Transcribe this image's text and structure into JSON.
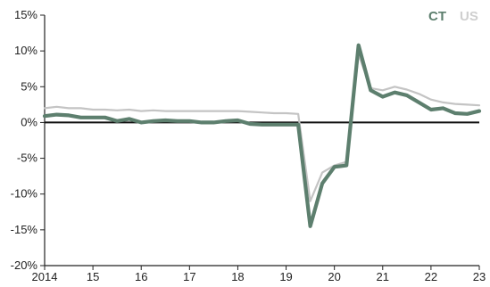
{
  "chart_data": {
    "type": "line",
    "title": "",
    "xlabel": "",
    "ylabel": "",
    "ylim": [
      -20,
      15
    ],
    "xlim": [
      2014,
      2023
    ],
    "grid": false,
    "legend_position": "top-right",
    "y_ticks": [
      15,
      10,
      5,
      0,
      -5,
      -10,
      -15,
      -20
    ],
    "y_tick_labels": [
      "15%",
      "10%",
      "5%",
      "0%",
      "-5%",
      "-10%",
      "-15%",
      "-20%"
    ],
    "x_ticks": [
      2014,
      2015,
      2016,
      2017,
      2018,
      2019,
      2020,
      2021,
      2022,
      2023
    ],
    "x_tick_labels": [
      "2014",
      "15",
      "16",
      "17",
      "18",
      "19",
      "20",
      "21",
      "22",
      "23"
    ],
    "series": [
      {
        "name": "US",
        "color": "#c4c4c4",
        "x": [
          2014.0,
          2014.25,
          2014.5,
          2014.75,
          2015.0,
          2015.25,
          2015.5,
          2015.75,
          2016.0,
          2016.25,
          2016.5,
          2016.75,
          2017.0,
          2017.25,
          2017.5,
          2017.75,
          2018.0,
          2018.25,
          2018.5,
          2018.75,
          2019.0,
          2019.25,
          2019.5,
          2019.75,
          2020.0,
          2020.25,
          2020.5,
          2020.75,
          2021.0,
          2021.25,
          2021.5,
          2021.75,
          2022.0,
          2022.25,
          2022.5,
          2022.75,
          2023.0
        ],
        "values": [
          2.0,
          2.2,
          2.0,
          2.0,
          1.8,
          1.8,
          1.7,
          1.8,
          1.6,
          1.7,
          1.6,
          1.6,
          1.6,
          1.6,
          1.6,
          1.6,
          1.6,
          1.5,
          1.4,
          1.3,
          1.3,
          1.2,
          -11.0,
          -7.0,
          -6.0,
          -5.5,
          9.5,
          4.8,
          4.5,
          5.0,
          4.6,
          4.0,
          3.2,
          2.8,
          2.6,
          2.5,
          2.4
        ]
      },
      {
        "name": "CT",
        "color": "#5d7f6e",
        "x": [
          2014.0,
          2014.25,
          2014.5,
          2014.75,
          2015.0,
          2015.25,
          2015.5,
          2015.75,
          2016.0,
          2016.25,
          2016.5,
          2016.75,
          2017.0,
          2017.25,
          2017.5,
          2017.75,
          2018.0,
          2018.25,
          2018.5,
          2018.75,
          2019.0,
          2019.25,
          2019.5,
          2019.75,
          2020.0,
          2020.25,
          2020.5,
          2020.75,
          2021.0,
          2021.25,
          2021.5,
          2021.75,
          2022.0,
          2022.25,
          2022.5,
          2022.75,
          2023.0
        ],
        "values": [
          0.9,
          1.1,
          1.0,
          0.7,
          0.7,
          0.7,
          0.2,
          0.5,
          0.0,
          0.2,
          0.3,
          0.2,
          0.2,
          0.0,
          0.0,
          0.2,
          0.3,
          -0.2,
          -0.3,
          -0.3,
          -0.3,
          -0.3,
          -14.5,
          -8.5,
          -6.2,
          -6.0,
          10.8,
          4.5,
          3.6,
          4.2,
          3.8,
          2.8,
          1.8,
          2.0,
          1.3,
          1.2,
          1.6
        ]
      }
    ]
  }
}
